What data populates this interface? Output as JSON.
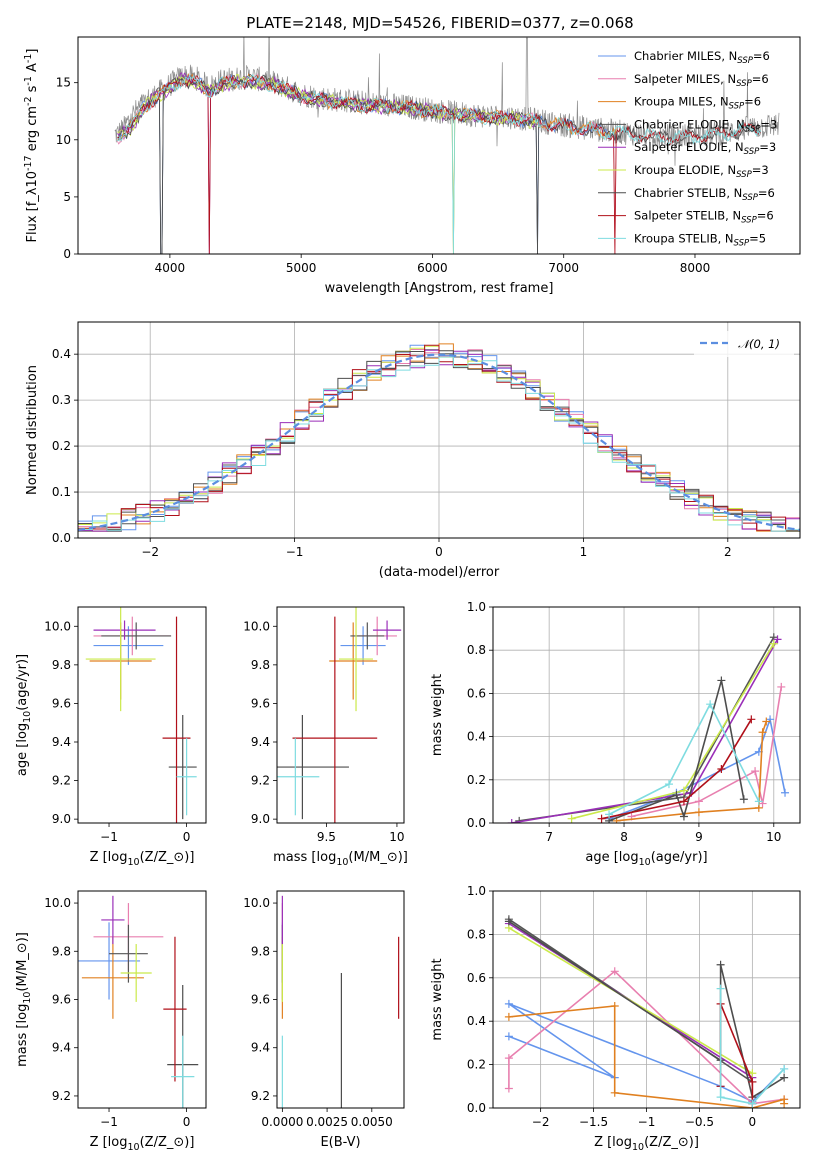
{
  "figure": {
    "title": "PLATE=2148, MJD=54526, FIBERID=0377, z=0.068"
  },
  "models": [
    {
      "name": "Chabrier MILES, N$_{SSP}$=6",
      "label": "Chabrier MILES, N",
      "sub": "SSP",
      "n": "=6",
      "color": "#6495ed"
    },
    {
      "name": "Salpeter MILES, N$_{SSP}$=6",
      "label": "Salpeter MILES, N",
      "sub": "SSP",
      "n": "=6",
      "color": "#e87faf"
    },
    {
      "name": "Kroupa MILES, N$_{SSP}$=6",
      "label": "Kroupa MILES, N",
      "sub": "SSP",
      "n": "=6",
      "color": "#e08020"
    },
    {
      "name": "Chabrier ELODIE, N$_{SSP}$=3",
      "label": "Chabrier ELODIE, N",
      "sub": "SSP",
      "n": "=3",
      "color": "#555555"
    },
    {
      "name": "Salpeter ELODIE, N$_{SSP}$=3",
      "label": "Salpeter ELODIE, N",
      "sub": "SSP",
      "n": "=3",
      "color": "#9a2fb8"
    },
    {
      "name": "Kroupa ELODIE, N$_{SSP}$=3",
      "label": "Kroupa ELODIE, N",
      "sub": "SSP",
      "n": "=3",
      "color": "#cbe94a"
    },
    {
      "name": "Chabrier STELIB, N$_{SSP}$=6",
      "label": "Chabrier STELIB, N",
      "sub": "SSP",
      "n": "=6",
      "color": "#4d4d4d"
    },
    {
      "name": "Salpeter STELIB, N$_{SSP}$=6",
      "label": "Salpeter STELIB, N",
      "sub": "SSP",
      "n": "=6",
      "color": "#b0101a"
    },
    {
      "name": "Kroupa STELIB, N$_{SSP}$=5",
      "label": "Kroupa STELIB, N",
      "sub": "SSP",
      "n": "=5",
      "color": "#7fdce0"
    }
  ],
  "chart_data": [
    {
      "id": "spectrum",
      "type": "line",
      "xlabel": "wavelength [Angstrom, rest frame]",
      "ylabel": "Flux [f$_\\lambda$10$^{-17}$ erg cm$^{-2}$ s$^{-1}$ A$^{-1}$]",
      "xlim": [
        3300,
        8800
      ],
      "ylim": [
        0,
        19
      ],
      "xticks": [
        4000,
        5000,
        6000,
        7000,
        8000
      ],
      "yticks": [
        0,
        5,
        10,
        15
      ],
      "data_series": {
        "name": "data",
        "color": "#8c8c8c",
        "x": [
          3600,
          3650,
          3700,
          3800,
          3900,
          4000,
          4100,
          4200,
          4300,
          4400,
          4600,
          4800,
          5000,
          5200,
          5500,
          5800,
          6000,
          6200,
          6400,
          6600,
          6800,
          7000,
          7200,
          7400,
          7600,
          7800,
          8000,
          8200,
          8400,
          8600
        ],
        "y": [
          10.5,
          11.0,
          12.0,
          13.2,
          14.0,
          14.8,
          15.6,
          15.4,
          14.6,
          15.2,
          15.5,
          15.0,
          14.0,
          13.6,
          13.2,
          12.9,
          12.6,
          12.3,
          12.1,
          12.0,
          11.7,
          11.3,
          11.0,
          10.7,
          10.5,
          10.3,
          10.4,
          10.6,
          11.0,
          11.3
        ]
      },
      "model_curve": {
        "x": [
          3600,
          3700,
          3800,
          3900,
          4000,
          4100,
          4200,
          4300,
          4400,
          4600,
          4800,
          5000,
          5200,
          5500,
          5800,
          6000,
          6200,
          6400,
          6600,
          6800,
          7000,
          7200,
          7400,
          7600,
          7800,
          8000,
          8200,
          8400
        ],
        "y": [
          10.2,
          11.0,
          12.8,
          13.8,
          14.6,
          15.3,
          15.0,
          14.2,
          14.9,
          15.2,
          14.8,
          13.8,
          13.4,
          13.0,
          12.8,
          12.5,
          12.2,
          12.0,
          11.9,
          11.6,
          11.2,
          10.9,
          10.6,
          10.4,
          10.2,
          10.3,
          10.5,
          10.9
        ]
      },
      "ends": {
        "Chabrier MILES, N$_{SSP}$=6": 7400,
        "Salpeter MILES, N$_{SSP}$=6": 7400,
        "Kroupa MILES, N$_{SSP}$=6": 7400,
        "Chabrier ELODIE, N$_{SSP}$=3": 6800,
        "Salpeter ELODIE, N$_{SSP}$=3": 6800,
        "Kroupa ELODIE, N$_{SSP}$=3": 6800,
        "Chabrier STELIB, N$_{SSP}$=6": 8500,
        "Salpeter STELIB, N$_{SSP}$=6": 8500,
        "Kroupa STELIB, N$_{SSP}$=5": 8500
      },
      "legend": "top-right"
    },
    {
      "id": "residual",
      "type": "line",
      "xlabel": "(data-model)/error",
      "ylabel": "Normed distribution",
      "xlim": [
        -2.5,
        2.5
      ],
      "ylim": [
        0,
        0.47
      ],
      "xticks": [
        -2,
        -1,
        0,
        1,
        2
      ],
      "yticks": [
        0.0,
        0.1,
        0.2,
        0.3,
        0.4
      ],
      "grid": true,
      "legend": "top-right",
      "gaussian": {
        "name": "$\\mathcal{N}(0,1)$",
        "label": "𝒩(0, 1)",
        "color": "#5b8ee0"
      },
      "bin_width": 0.1
    },
    {
      "id": "age_vs_Z",
      "type": "scatter",
      "xlabel": "Z [log$_{10}$(Z/Z$_\\odot$)]",
      "ylabel": "age  [log$_{10}$(age/yr)]",
      "xlim": [
        -1.4,
        0.25
      ],
      "ylim": [
        8.98,
        10.1
      ],
      "xticks": [
        -1,
        0
      ],
      "yticks": [
        9.0,
        9.2,
        9.4,
        9.6,
        9.8,
        10.0
      ],
      "points": [
        {
          "x": -0.75,
          "xerr": 0.45,
          "y": 9.9,
          "yerr": 0.1
        },
        {
          "x": -0.7,
          "xerr": 0.5,
          "y": 9.95,
          "yerr": 0.1
        },
        {
          "x": -0.85,
          "xerr": 0.4,
          "y": 9.82,
          "yerr": 0.2
        },
        {
          "x": -0.65,
          "xerr": 0.45,
          "y": 9.95,
          "yerr": 0.07
        },
        {
          "x": -0.8,
          "xerr": 0.4,
          "y": 9.98,
          "yerr": 0.05
        },
        {
          "x": -0.85,
          "xerr": 0.45,
          "y": 9.83,
          "yerr": 0.27
        },
        {
          "x": -0.05,
          "xerr": 0.18,
          "y": 9.27,
          "yerr": 0.27
        },
        {
          "x": -0.13,
          "xerr": 0.18,
          "y": 9.42,
          "yerr": 0.63
        },
        {
          "x": 0.0,
          "xerr": 0.13,
          "y": 9.22,
          "yerr": 0.2
        }
      ]
    },
    {
      "id": "age_vs_mass",
      "type": "scatter",
      "xlabel": "mass [log$_{10}$(M/M$_\\odot$)]",
      "ylabel": "",
      "xlim": [
        9.15,
        10.05
      ],
      "ylim": [
        8.98,
        10.1
      ],
      "xticks": [
        9.5,
        10.0
      ],
      "yticks": [
        9.0,
        9.2,
        9.4,
        9.6,
        9.8,
        10.0
      ],
      "points": [
        {
          "x": 9.76,
          "xerr": 0.16,
          "y": 9.9,
          "yerr": 0.1
        },
        {
          "x": 9.86,
          "xerr": 0.14,
          "y": 9.95,
          "yerr": 0.1
        },
        {
          "x": 9.69,
          "xerr": 0.17,
          "y": 9.82,
          "yerr": 0.2
        },
        {
          "x": 9.79,
          "xerr": 0.12,
          "y": 9.95,
          "yerr": 0.07
        },
        {
          "x": 9.93,
          "xerr": 0.1,
          "y": 9.98,
          "yerr": 0.05
        },
        {
          "x": 9.71,
          "xerr": 0.12,
          "y": 9.83,
          "yerr": 0.27
        },
        {
          "x": 9.33,
          "xerr": 0.33,
          "y": 9.27,
          "yerr": 0.27
        },
        {
          "x": 9.56,
          "xerr": 0.3,
          "y": 9.42,
          "yerr": 0.63
        },
        {
          "x": 9.28,
          "xerr": 0.17,
          "y": 9.22,
          "yerr": 0.2
        }
      ]
    },
    {
      "id": "weight_vs_age",
      "type": "line",
      "xlabel": "age  [log$_{10}$(age/yr)]",
      "ylabel": "mass weight",
      "xlim": [
        6.25,
        10.35
      ],
      "ylim": [
        0,
        1.0
      ],
      "xticks": [
        7,
        8,
        9,
        10
      ],
      "yticks": [
        0.0,
        0.2,
        0.4,
        0.6,
        0.8,
        1.0
      ],
      "grid": true,
      "series": [
        {
          "x": [
            7.8,
            8.7,
            9.8,
            9.95,
            10.15
          ],
          "y": [
            0.02,
            0.14,
            0.33,
            0.48,
            0.14
          ]
        },
        {
          "x": [
            8.1,
            9.0,
            9.75,
            9.85,
            10.1
          ],
          "y": [
            0.03,
            0.1,
            0.24,
            0.09,
            0.63
          ]
        },
        {
          "x": [
            7.9,
            9.0,
            9.8,
            9.85,
            9.9
          ],
          "y": [
            0.01,
            0.05,
            0.07,
            0.42,
            0.47
          ]
        },
        {
          "x": [
            6.6,
            8.8,
            10.0
          ],
          "y": [
            0.01,
            0.12,
            0.86
          ]
        },
        {
          "x": [
            6.5,
            8.9,
            10.05
          ],
          "y": [
            0.0,
            0.14,
            0.85
          ]
        },
        {
          "x": [
            7.3,
            8.8,
            10.0
          ],
          "y": [
            0.02,
            0.15,
            0.83
          ]
        },
        {
          "x": [
            7.8,
            8.7,
            8.8,
            9.3,
            9.6
          ],
          "y": [
            0.01,
            0.13,
            0.03,
            0.66,
            0.11
          ]
        },
        {
          "x": [
            7.7,
            8.8,
            9.3,
            9.7
          ],
          "y": [
            0.02,
            0.1,
            0.25,
            0.48
          ]
        },
        {
          "x": [
            7.8,
            8.6,
            9.15,
            9.8
          ],
          "y": [
            0.04,
            0.18,
            0.55,
            0.1
          ]
        }
      ]
    },
    {
      "id": "mass_vs_Z",
      "type": "scatter",
      "xlabel": "Z [log$_{10}$(Z/Z$_\\odot$)]",
      "ylabel": "mass [log$_{10}$(M/M$_\\odot$)]",
      "xlim": [
        -1.4,
        0.25
      ],
      "ylim": [
        9.15,
        10.05
      ],
      "xticks": [
        -1,
        0
      ],
      "yticks": [
        9.2,
        9.4,
        9.6,
        9.8,
        10.0
      ],
      "points": [
        {
          "x": -1.0,
          "xerr": 0.4,
          "y": 9.76,
          "yerr": 0.16
        },
        {
          "x": -0.75,
          "xerr": 0.45,
          "y": 9.86,
          "yerr": 0.14
        },
        {
          "x": -0.95,
          "xerr": 0.4,
          "y": 9.69,
          "yerr": 0.17
        },
        {
          "x": -0.75,
          "xerr": 0.25,
          "y": 9.79,
          "yerr": 0.12
        },
        {
          "x": -0.95,
          "xerr": 0.15,
          "y": 9.93,
          "yerr": 0.1
        },
        {
          "x": -0.65,
          "xerr": 0.2,
          "y": 9.71,
          "yerr": 0.12
        },
        {
          "x": -0.05,
          "xerr": 0.2,
          "y": 9.33,
          "yerr": 0.33
        },
        {
          "x": -0.15,
          "xerr": 0.15,
          "y": 9.56,
          "yerr": 0.3
        },
        {
          "x": -0.05,
          "xerr": 0.15,
          "y": 9.28,
          "yerr": 0.17
        }
      ]
    },
    {
      "id": "mass_vs_ebv",
      "type": "scatter",
      "xlabel": "E(B-V)",
      "ylabel": "",
      "xlim": [
        -0.0003,
        0.0068
      ],
      "ylim": [
        9.15,
        10.05
      ],
      "xticks": [
        0.0,
        0.0025,
        0.005
      ],
      "xticklabels": [
        "0.0000",
        "0.0025",
        "0.0050"
      ],
      "yticks": [
        9.2,
        9.4,
        9.6,
        9.8,
        10.0
      ],
      "points": [
        {
          "x": 0.0,
          "y": 9.76,
          "yerr": 0.16
        },
        {
          "x": 0.0,
          "y": 9.86,
          "yerr": 0.14
        },
        {
          "x": 0.0,
          "y": 9.69,
          "yerr": 0.17
        },
        {
          "x": 0.0,
          "y": 9.79,
          "yerr": 0.12
        },
        {
          "x": 0.0,
          "y": 9.93,
          "yerr": 0.1
        },
        {
          "x": 0.0,
          "y": 9.71,
          "yerr": 0.12
        },
        {
          "x": 0.0033,
          "y": 9.37,
          "yerr": 0.34
        },
        {
          "x": 0.0065,
          "y": 9.69,
          "yerr": 0.17
        },
        {
          "x": 0.0,
          "y": 9.28,
          "yerr": 0.17
        }
      ]
    },
    {
      "id": "weight_vs_Z",
      "type": "line",
      "xlabel": "Z [log$_{10}$(Z/Z$_\\odot$)]",
      "ylabel": "mass weight",
      "xlim": [
        -2.45,
        0.45
      ],
      "ylim": [
        0,
        1.0
      ],
      "xticks": [
        -2.0,
        -1.5,
        -1.0,
        -0.5,
        0.0
      ],
      "yticks": [
        0.0,
        0.2,
        0.4,
        0.6,
        0.8,
        1.0
      ],
      "grid": true,
      "series": [
        {
          "x": [
            -2.3,
            -1.3,
            -2.3,
            -0.3,
            0.0,
            0.3
          ],
          "y": [
            0.33,
            0.14,
            0.48,
            0.1,
            0.03,
            0.18
          ]
        },
        {
          "x": [
            -2.3,
            -2.3,
            -1.3,
            0.0,
            0.3
          ],
          "y": [
            0.09,
            0.23,
            0.63,
            0.02,
            0.04
          ]
        },
        {
          "x": [
            -2.3,
            -1.3,
            -1.3,
            0.0,
            0.3,
            0.3
          ],
          "y": [
            0.42,
            0.47,
            0.07,
            0.0,
            0.04,
            0.02
          ]
        },
        {
          "x": [
            -2.3,
            0.0
          ],
          "y": [
            0.87,
            0.12
          ]
        },
        {
          "x": [
            -2.3,
            0.0
          ],
          "y": [
            0.85,
            0.14
          ]
        },
        {
          "x": [
            -2.3,
            0.0
          ],
          "y": [
            0.83,
            0.16
          ]
        },
        {
          "x": [
            -2.3,
            -0.3,
            -0.3,
            0.0,
            0.3
          ],
          "y": [
            0.86,
            0.22,
            0.66,
            0.05,
            0.14
          ]
        },
        {
          "x": [
            -0.3,
            -0.3,
            0.0,
            0.0
          ],
          "y": [
            0.1,
            0.48,
            0.12,
            0.02
          ]
        },
        {
          "x": [
            -0.3,
            -0.3,
            0.0,
            0.3
          ],
          "y": [
            0.55,
            0.05,
            0.02,
            0.18
          ]
        }
      ]
    }
  ]
}
